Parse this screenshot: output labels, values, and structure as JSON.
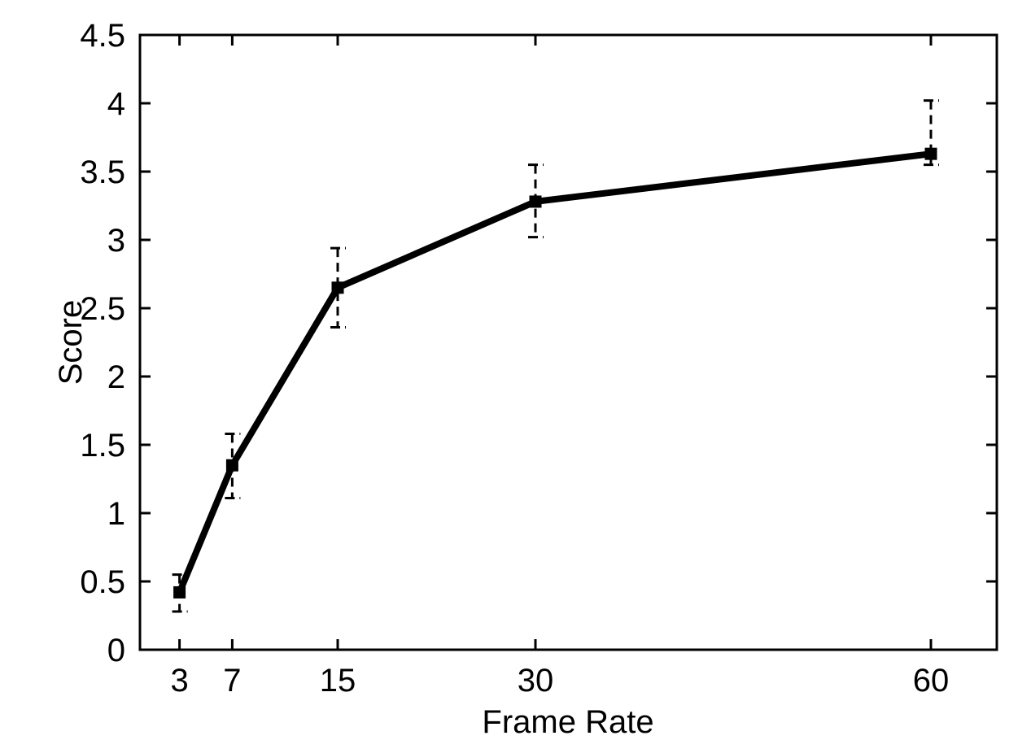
{
  "page": {
    "background_color": "#ffffff"
  },
  "chart_data": {
    "type": "line",
    "title": "",
    "xlabel": "Frame Rate",
    "ylabel": "Score",
    "x": [
      3,
      7,
      15,
      30,
      60
    ],
    "xtick_labels": [
      "3",
      "7",
      "15",
      "30",
      "60"
    ],
    "ytick_labels": [
      "0",
      "0.5",
      "1",
      "1.5",
      "2",
      "2.5",
      "3",
      "3.5",
      "4",
      "4.5"
    ],
    "xticks": [
      3,
      7,
      15,
      30,
      60
    ],
    "yticks": [
      0,
      0.5,
      1,
      1.5,
      2,
      2.5,
      3,
      3.5,
      4,
      4.5
    ],
    "xlim": [
      0,
      65
    ],
    "ylim": [
      0,
      4.5
    ],
    "series": [
      {
        "name": "Score",
        "values": [
          0.42,
          1.35,
          2.65,
          3.28,
          3.63
        ],
        "error_low": [
          0.28,
          1.11,
          2.36,
          3.02,
          3.55
        ],
        "error_high": [
          0.55,
          1.58,
          2.94,
          3.55,
          4.02
        ]
      }
    ],
    "grid": false,
    "legend_position": "none",
    "line_color": "#000000",
    "marker": "filled-square",
    "errorbar_style": "dashed-with-caps",
    "tick_style": "inward-mirrored"
  }
}
